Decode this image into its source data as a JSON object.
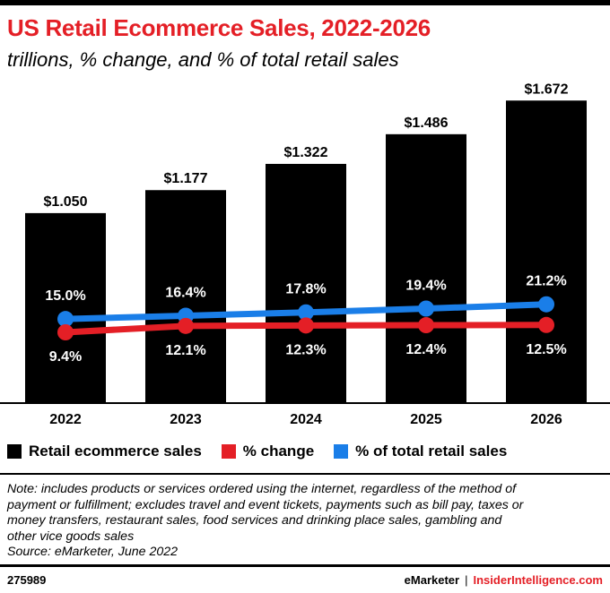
{
  "header": {
    "title": "US Retail Ecommerce Sales, 2022-2026",
    "subtitle": "trillions, % change, and % of total retail sales"
  },
  "chart_data": {
    "type": "bar",
    "categories": [
      "2022",
      "2023",
      "2024",
      "2025",
      "2026"
    ],
    "series": [
      {
        "name": "Retail ecommerce sales",
        "type": "bar",
        "color": "#000000",
        "values": [
          1.05,
          1.177,
          1.322,
          1.486,
          1.672
        ],
        "labels": [
          "$1.050",
          "$1.177",
          "$1.322",
          "$1.486",
          "$1.672"
        ]
      },
      {
        "name": "% change",
        "type": "line",
        "color": "#e41f26",
        "values": [
          9.4,
          12.1,
          12.3,
          12.4,
          12.5
        ],
        "labels": [
          "9.4%",
          "12.1%",
          "12.3%",
          "12.4%",
          "12.5%"
        ]
      },
      {
        "name": "% of total retail sales",
        "type": "line",
        "color": "#1a7ee8",
        "values": [
          15.0,
          16.4,
          17.8,
          19.4,
          21.2
        ],
        "labels": [
          "15.0%",
          "16.4%",
          "17.8%",
          "19.4%",
          "21.2%"
        ]
      }
    ],
    "legend_position": "bottom-left",
    "grid": false
  },
  "legend": {
    "items": [
      {
        "label": "Retail ecommerce sales",
        "color": "#000000"
      },
      {
        "label": "% change",
        "color": "#e41f26"
      },
      {
        "label": "% of total retail sales",
        "color": "#1a7ee8"
      }
    ]
  },
  "note": {
    "lines": [
      "Note: includes products or services ordered using the internet, regardless of the method of",
      "payment or fulfillment; excludes travel and event tickets, payments such as bill pay, taxes or",
      "money transfers, restaurant sales, food services and drinking place sales, gambling and",
      "other vice goods sales",
      "Source: eMarketer, June 2022"
    ]
  },
  "footer": {
    "id": "275989",
    "brand": "eMarketer",
    "separator": "|",
    "site": "InsiderIntelligence.com"
  }
}
